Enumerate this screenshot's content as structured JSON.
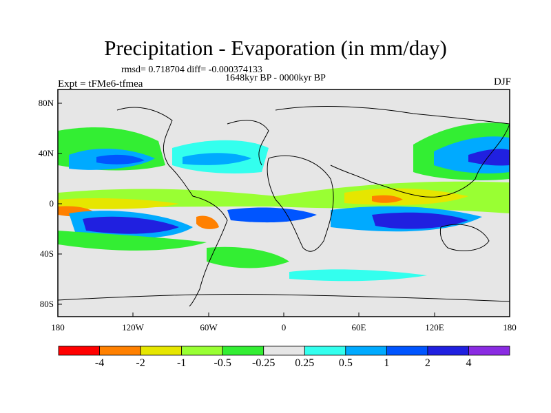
{
  "header": {
    "title": "Precipitation - Evaporation (in mm/day)",
    "stats": "rmsd= 0.718704 diff= -0.000374133",
    "period": "1648kyr BP - 0000kyr BP",
    "experiment": "Expt = tFMe6-tfmea",
    "season": "DJF"
  },
  "axes": {
    "y_ticks": [
      "80N",
      "40N",
      "0",
      "40S",
      "80S"
    ],
    "x_ticks": [
      "180",
      "120W",
      "60W",
      "0",
      "60E",
      "120E",
      "180"
    ]
  },
  "colorbar": {
    "colors": [
      "#ff0000",
      "#ff8000",
      "#e6e600",
      "#99ff33",
      "#33ee33",
      "#e6e6e6",
      "#33ffee",
      "#00aaff",
      "#0055ff",
      "#2020e0",
      "#8a2be2"
    ],
    "labels": [
      "-4",
      "-2",
      "-1",
      "-0.5",
      "-0.25",
      "0.25",
      "0.5",
      "1",
      "2",
      "4"
    ]
  }
}
